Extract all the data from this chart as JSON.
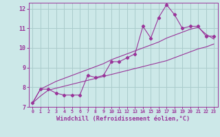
{
  "xlabel": "Windchill (Refroidissement éolien,°C)",
  "bg_color": "#cce8e8",
  "grid_color": "#aacccc",
  "line_color": "#993399",
  "x_data": [
    0,
    1,
    2,
    3,
    4,
    5,
    6,
    7,
    8,
    9,
    10,
    11,
    12,
    13,
    14,
    15,
    16,
    17,
    18,
    19,
    20,
    21,
    22,
    23
  ],
  "y_data": [
    7.2,
    7.9,
    7.9,
    7.7,
    7.6,
    7.6,
    7.6,
    8.6,
    8.5,
    8.6,
    9.3,
    9.3,
    9.5,
    9.7,
    11.1,
    10.5,
    11.55,
    12.2,
    11.7,
    11.0,
    11.1,
    11.1,
    10.6,
    10.6
  ],
  "y_lower": [
    7.2,
    7.55,
    7.85,
    7.95,
    8.05,
    8.15,
    8.25,
    8.35,
    8.45,
    8.55,
    8.65,
    8.75,
    8.85,
    8.95,
    9.05,
    9.15,
    9.25,
    9.35,
    9.5,
    9.65,
    9.8,
    9.95,
    10.05,
    10.2
  ],
  "y_upper": [
    7.2,
    7.9,
    8.1,
    8.3,
    8.45,
    8.6,
    8.75,
    8.9,
    9.05,
    9.2,
    9.4,
    9.55,
    9.7,
    9.85,
    10.0,
    10.15,
    10.3,
    10.5,
    10.65,
    10.8,
    10.95,
    11.05,
    10.7,
    10.45
  ],
  "xlim": [
    -0.5,
    23.5
  ],
  "ylim": [
    7,
    12.3
  ],
  "xticks": [
    0,
    1,
    2,
    3,
    4,
    5,
    6,
    7,
    8,
    9,
    10,
    11,
    12,
    13,
    14,
    15,
    16,
    17,
    18,
    19,
    20,
    21,
    22,
    23
  ],
  "yticks": [
    7,
    8,
    9,
    10,
    11,
    12
  ]
}
